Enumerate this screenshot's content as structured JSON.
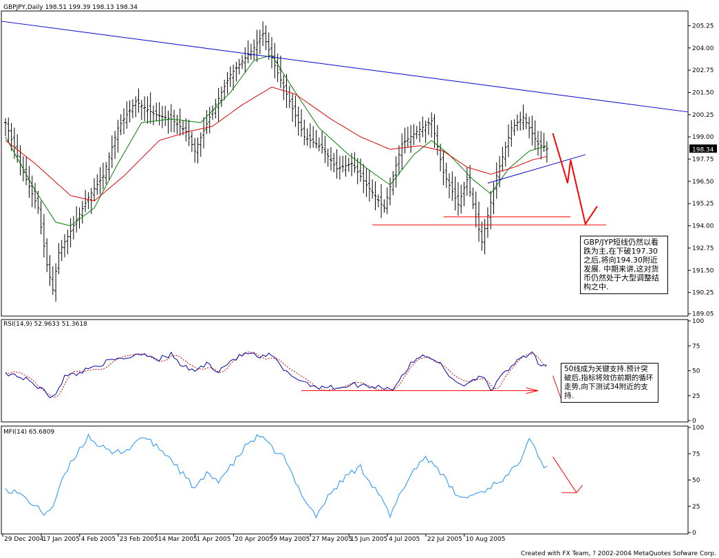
{
  "footer": "Created with FX Team, ? 2002-2004 MetaQuotes Sofware Corp.",
  "colors": {
    "bars": "#000000",
    "ma_fast": "#008000",
    "ma_slow": "#e00000",
    "trend": "#0000c8",
    "rsi": "#0000aa",
    "rsi_signal": "#cc0000",
    "mfi": "#1e90ff",
    "annotation": "#ff0000",
    "price_marker_bg": "#000000",
    "price_marker_fg": "#ffffff"
  },
  "notes": {
    "price": "GBP/JYP短线仍然以看跌为主,在下破197.30之后,将向194.30附近发展. 中期来讲,这对货币仍然处于大型调整结构之中.",
    "rsi": "50线成为关键支持.预计突破后,指标将效仿前期的循环走势,向下测试34附近的支持."
  },
  "chart_data": [
    {
      "type": "candlestick",
      "title": "GBPJPY,Daily  198.51 199.39 198.13 198.34",
      "last_price": "198.34",
      "ylim": [
        189.0,
        206.0
      ],
      "y_ticks": [
        "205.25",
        "204.00",
        "202.75",
        "201.50",
        "200.25",
        "199.00",
        "197.75",
        "196.50",
        "195.25",
        "194.00",
        "192.75",
        "191.50",
        "190.25",
        "189.05"
      ],
      "x_ticks": [
        "29 Dec 2004",
        "17 Jan 2005",
        "4 Feb 2005",
        "23 Feb 2005",
        "14 Mar 2005",
        "1 Apr 2005",
        "20 Apr 2005",
        "9 May 2005",
        "27 May 2005",
        "15 Jun 2005",
        "4 Jul 2005",
        "22 Jul 2005",
        "10 Aug 2005"
      ],
      "close_path": [
        {
          "t": 0,
          "v": 199.8
        },
        {
          "t": 6,
          "v": 197.0
        },
        {
          "t": 11,
          "v": 195.0
        },
        {
          "t": 14,
          "v": 191.8
        },
        {
          "t": 16,
          "v": 190.4
        },
        {
          "t": 18,
          "v": 192.5
        },
        {
          "t": 22,
          "v": 193.7
        },
        {
          "t": 28,
          "v": 195.6
        },
        {
          "t": 33,
          "v": 196.8
        },
        {
          "t": 38,
          "v": 199.5
        },
        {
          "t": 44,
          "v": 201.0
        },
        {
          "t": 50,
          "v": 200.3
        },
        {
          "t": 56,
          "v": 200.0
        },
        {
          "t": 61,
          "v": 199.3
        },
        {
          "t": 64,
          "v": 198.2
        },
        {
          "t": 70,
          "v": 200.5
        },
        {
          "t": 76,
          "v": 202.5
        },
        {
          "t": 84,
          "v": 204.0
        },
        {
          "t": 87,
          "v": 204.8
        },
        {
          "t": 91,
          "v": 203.0
        },
        {
          "t": 96,
          "v": 201.0
        },
        {
          "t": 101,
          "v": 199.0
        },
        {
          "t": 107,
          "v": 198.4
        },
        {
          "t": 112,
          "v": 197.2
        },
        {
          "t": 117,
          "v": 197.5
        },
        {
          "t": 122,
          "v": 196.3
        },
        {
          "t": 128,
          "v": 195.0
        },
        {
          "t": 134,
          "v": 198.6
        },
        {
          "t": 139,
          "v": 199.3
        },
        {
          "t": 144,
          "v": 199.9
        },
        {
          "t": 148,
          "v": 197.0
        },
        {
          "t": 153,
          "v": 195.2
        },
        {
          "t": 156,
          "v": 196.6
        },
        {
          "t": 161,
          "v": 193.1
        },
        {
          "t": 166,
          "v": 196.8
        },
        {
          "t": 171,
          "v": 199.5
        },
        {
          "t": 175,
          "v": 200.1
        },
        {
          "t": 180,
          "v": 198.6
        },
        {
          "t": 183,
          "v": 198.34
        }
      ],
      "ma_fast_path": [
        {
          "t": 0,
          "v": 199.0
        },
        {
          "t": 10,
          "v": 196.0
        },
        {
          "t": 17,
          "v": 194.2
        },
        {
          "t": 22,
          "v": 194.0
        },
        {
          "t": 30,
          "v": 195.0
        },
        {
          "t": 38,
          "v": 197.5
        },
        {
          "t": 46,
          "v": 199.8
        },
        {
          "t": 56,
          "v": 200.0
        },
        {
          "t": 66,
          "v": 199.8
        },
        {
          "t": 76,
          "v": 201.5
        },
        {
          "t": 84,
          "v": 203.3
        },
        {
          "t": 90,
          "v": 203.6
        },
        {
          "t": 98,
          "v": 201.5
        },
        {
          "t": 106,
          "v": 199.5
        },
        {
          "t": 116,
          "v": 198.0
        },
        {
          "t": 124,
          "v": 197.0
        },
        {
          "t": 130,
          "v": 196.3
        },
        {
          "t": 138,
          "v": 198.0
        },
        {
          "t": 144,
          "v": 198.8
        },
        {
          "t": 150,
          "v": 198.0
        },
        {
          "t": 158,
          "v": 196.6
        },
        {
          "t": 164,
          "v": 195.8
        },
        {
          "t": 170,
          "v": 197.2
        },
        {
          "t": 177,
          "v": 198.2
        },
        {
          "t": 183,
          "v": 198.5
        }
      ],
      "ma_slow_path": [
        {
          "t": 0,
          "v": 198.8
        },
        {
          "t": 10,
          "v": 197.5
        },
        {
          "t": 22,
          "v": 195.7
        },
        {
          "t": 30,
          "v": 195.4
        },
        {
          "t": 40,
          "v": 196.8
        },
        {
          "t": 52,
          "v": 198.8
        },
        {
          "t": 62,
          "v": 199.3
        },
        {
          "t": 70,
          "v": 199.6
        },
        {
          "t": 80,
          "v": 200.8
        },
        {
          "t": 90,
          "v": 201.8
        },
        {
          "t": 98,
          "v": 201.4
        },
        {
          "t": 110,
          "v": 200.0
        },
        {
          "t": 120,
          "v": 199.0
        },
        {
          "t": 130,
          "v": 198.3
        },
        {
          "t": 140,
          "v": 198.5
        },
        {
          "t": 148,
          "v": 198.2
        },
        {
          "t": 156,
          "v": 197.3
        },
        {
          "t": 164,
          "v": 196.9
        },
        {
          "t": 172,
          "v": 197.3
        },
        {
          "t": 178,
          "v": 197.7
        },
        {
          "t": 183,
          "v": 197.9
        }
      ],
      "trendline_points": [
        {
          "t": 0,
          "v": 205.5
        },
        {
          "t": 196,
          "v": 200.4
        }
      ],
      "support_line_points": [
        {
          "t": 163,
          "v": 196.4
        },
        {
          "t": 196,
          "v": 198.0
        }
      ],
      "horizontal_levels": [
        194.5,
        194.05
      ]
    },
    {
      "type": "line",
      "title": "RSI(14,9)  52.9633  51.3618",
      "ylim": [
        0,
        100
      ],
      "y_ticks": [
        "100",
        "75",
        "50",
        "25",
        "0"
      ],
      "series": [
        {
          "name": "RSI(14)",
          "values_path": [
            {
              "t": 0,
              "v": 48
            },
            {
              "t": 4,
              "v": 45
            },
            {
              "t": 8,
              "v": 40
            },
            {
              "t": 12,
              "v": 32
            },
            {
              "t": 15,
              "v": 24
            },
            {
              "t": 17,
              "v": 28
            },
            {
              "t": 20,
              "v": 44
            },
            {
              "t": 25,
              "v": 48
            },
            {
              "t": 30,
              "v": 55
            },
            {
              "t": 36,
              "v": 60
            },
            {
              "t": 42,
              "v": 64
            },
            {
              "t": 46,
              "v": 68
            },
            {
              "t": 52,
              "v": 62
            },
            {
              "t": 56,
              "v": 66
            },
            {
              "t": 60,
              "v": 54
            },
            {
              "t": 64,
              "v": 50
            },
            {
              "t": 68,
              "v": 57
            },
            {
              "t": 72,
              "v": 50
            },
            {
              "t": 76,
              "v": 60
            },
            {
              "t": 82,
              "v": 68
            },
            {
              "t": 86,
              "v": 63
            },
            {
              "t": 90,
              "v": 66
            },
            {
              "t": 94,
              "v": 50
            },
            {
              "t": 100,
              "v": 40
            },
            {
              "t": 105,
              "v": 34
            },
            {
              "t": 112,
              "v": 33
            },
            {
              "t": 118,
              "v": 36
            },
            {
              "t": 126,
              "v": 34
            },
            {
              "t": 131,
              "v": 32
            },
            {
              "t": 134,
              "v": 45
            },
            {
              "t": 138,
              "v": 60
            },
            {
              "t": 142,
              "v": 66
            },
            {
              "t": 146,
              "v": 60
            },
            {
              "t": 150,
              "v": 44
            },
            {
              "t": 155,
              "v": 35
            },
            {
              "t": 158,
              "v": 42
            },
            {
              "t": 162,
              "v": 45
            },
            {
              "t": 164,
              "v": 30
            },
            {
              "t": 168,
              "v": 45
            },
            {
              "t": 172,
              "v": 58
            },
            {
              "t": 176,
              "v": 64
            },
            {
              "t": 178,
              "v": 68
            },
            {
              "t": 181,
              "v": 54
            },
            {
              "t": 183,
              "v": 52.96
            }
          ]
        },
        {
          "name": "Signal(9)",
          "offset_hint": "lagging dashed"
        }
      ],
      "annotation_level": 30
    },
    {
      "type": "line",
      "title": "MFI(14)  65.6809",
      "ylim": [
        0,
        100
      ],
      "y_ticks": [
        "100",
        "75",
        "50",
        "25",
        "0"
      ],
      "series": [
        {
          "name": "MFI(14)",
          "values_path": [
            {
              "t": 0,
              "v": 42
            },
            {
              "t": 4,
              "v": 38
            },
            {
              "t": 8,
              "v": 30
            },
            {
              "t": 13,
              "v": 18
            },
            {
              "t": 16,
              "v": 25
            },
            {
              "t": 20,
              "v": 55
            },
            {
              "t": 24,
              "v": 75
            },
            {
              "t": 28,
              "v": 92
            },
            {
              "t": 32,
              "v": 82
            },
            {
              "t": 36,
              "v": 75
            },
            {
              "t": 42,
              "v": 80
            },
            {
              "t": 46,
              "v": 92
            },
            {
              "t": 52,
              "v": 80
            },
            {
              "t": 56,
              "v": 70
            },
            {
              "t": 60,
              "v": 55
            },
            {
              "t": 64,
              "v": 42
            },
            {
              "t": 68,
              "v": 55
            },
            {
              "t": 72,
              "v": 50
            },
            {
              "t": 76,
              "v": 62
            },
            {
              "t": 82,
              "v": 85
            },
            {
              "t": 86,
              "v": 92
            },
            {
              "t": 90,
              "v": 80
            },
            {
              "t": 94,
              "v": 72
            },
            {
              "t": 98,
              "v": 48
            },
            {
              "t": 102,
              "v": 28
            },
            {
              "t": 105,
              "v": 16
            },
            {
              "t": 110,
              "v": 38
            },
            {
              "t": 116,
              "v": 56
            },
            {
              "t": 120,
              "v": 62
            },
            {
              "t": 126,
              "v": 38
            },
            {
              "t": 130,
              "v": 15
            },
            {
              "t": 134,
              "v": 40
            },
            {
              "t": 138,
              "v": 60
            },
            {
              "t": 142,
              "v": 72
            },
            {
              "t": 146,
              "v": 62
            },
            {
              "t": 150,
              "v": 44
            },
            {
              "t": 154,
              "v": 32
            },
            {
              "t": 158,
              "v": 36
            },
            {
              "t": 162,
              "v": 40
            },
            {
              "t": 166,
              "v": 48
            },
            {
              "t": 170,
              "v": 54
            },
            {
              "t": 174,
              "v": 70
            },
            {
              "t": 177,
              "v": 92
            },
            {
              "t": 180,
              "v": 75
            },
            {
              "t": 182,
              "v": 60
            },
            {
              "t": 183,
              "v": 65.68
            }
          ]
        }
      ]
    }
  ]
}
